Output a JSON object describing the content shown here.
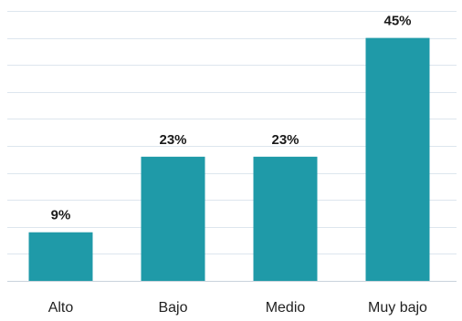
{
  "chart_data": {
    "type": "bar",
    "title": "",
    "xlabel": "",
    "ylabel": "",
    "categories": [
      "Alto",
      "Bajo",
      "Medio",
      "Muy bajo"
    ],
    "values": [
      9,
      23,
      23,
      45
    ],
    "data_labels": [
      "9%",
      "23%",
      "23%",
      "45%"
    ],
    "ylim": [
      0,
      50
    ],
    "grid": true,
    "legend": "none",
    "colors": {
      "bar": "#1f9aa8",
      "grid": "#dde6ee",
      "axis": "#c9d3dc"
    }
  }
}
